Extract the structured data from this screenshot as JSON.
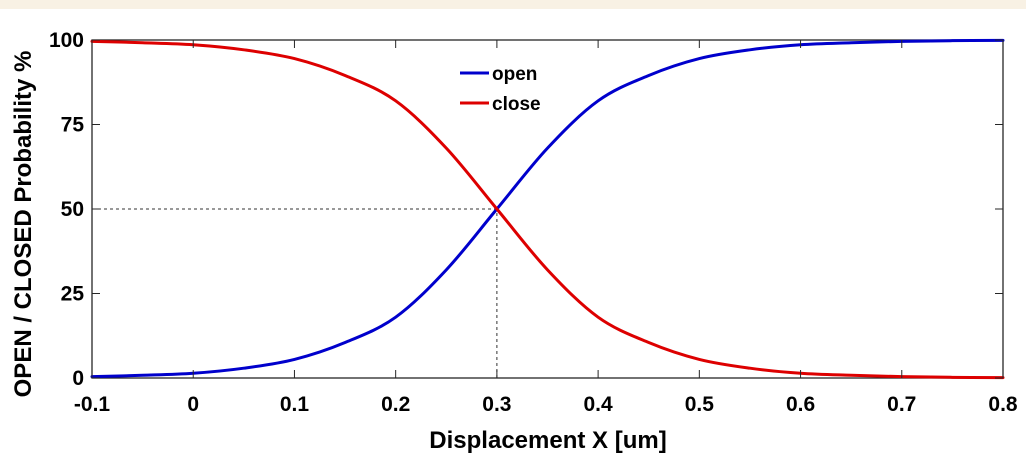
{
  "chart_data": {
    "type": "line",
    "title": "",
    "xlabel": "Displacement X [um]",
    "ylabel": "OPEN / CLOSED Probability %",
    "xlim": [
      -0.1,
      0.8
    ],
    "ylim": [
      0,
      100
    ],
    "x_ticks": [
      -0.1,
      0,
      0.1,
      0.2,
      0.3,
      0.4,
      0.5,
      0.6,
      0.7,
      0.8
    ],
    "x_tick_labels": [
      "-0.1",
      "0",
      "0.1",
      "0.2",
      "0.3",
      "0.4",
      "0.5",
      "0.6",
      "0.7",
      "0.8"
    ],
    "y_ticks": [
      0,
      25,
      50,
      75,
      100
    ],
    "y_tick_labels": [
      "0",
      "25",
      "50",
      "75",
      "100"
    ],
    "x": [
      -0.1,
      -0.05,
      0,
      0.05,
      0.1,
      0.15,
      0.2,
      0.25,
      0.3,
      0.35,
      0.4,
      0.45,
      0.5,
      0.55,
      0.6,
      0.65,
      0.7,
      0.75,
      0.8
    ],
    "series": [
      {
        "name": "open",
        "color": "#0000cc",
        "values": [
          0.4,
          0.8,
          1.4,
          2.9,
          5.5,
          10.5,
          18.0,
          32.0,
          50.0,
          68.0,
          82.0,
          89.5,
          94.5,
          97.1,
          98.6,
          99.2,
          99.6,
          99.8,
          99.9
        ]
      },
      {
        "name": "close",
        "color": "#dd0000",
        "values": [
          99.6,
          99.2,
          98.6,
          97.1,
          94.5,
          89.5,
          82.0,
          68.0,
          50.0,
          32.0,
          18.0,
          10.5,
          5.5,
          2.9,
          1.4,
          0.8,
          0.4,
          0.2,
          0.1
        ]
      }
    ],
    "reference_lines": [
      {
        "from": [
          -0.1,
          50
        ],
        "to": [
          0.3,
          50
        ],
        "style": "dashed"
      },
      {
        "from": [
          0.3,
          0
        ],
        "to": [
          0.3,
          50
        ],
        "style": "dashed"
      }
    ],
    "grid": false,
    "legend_position": "top-center"
  }
}
